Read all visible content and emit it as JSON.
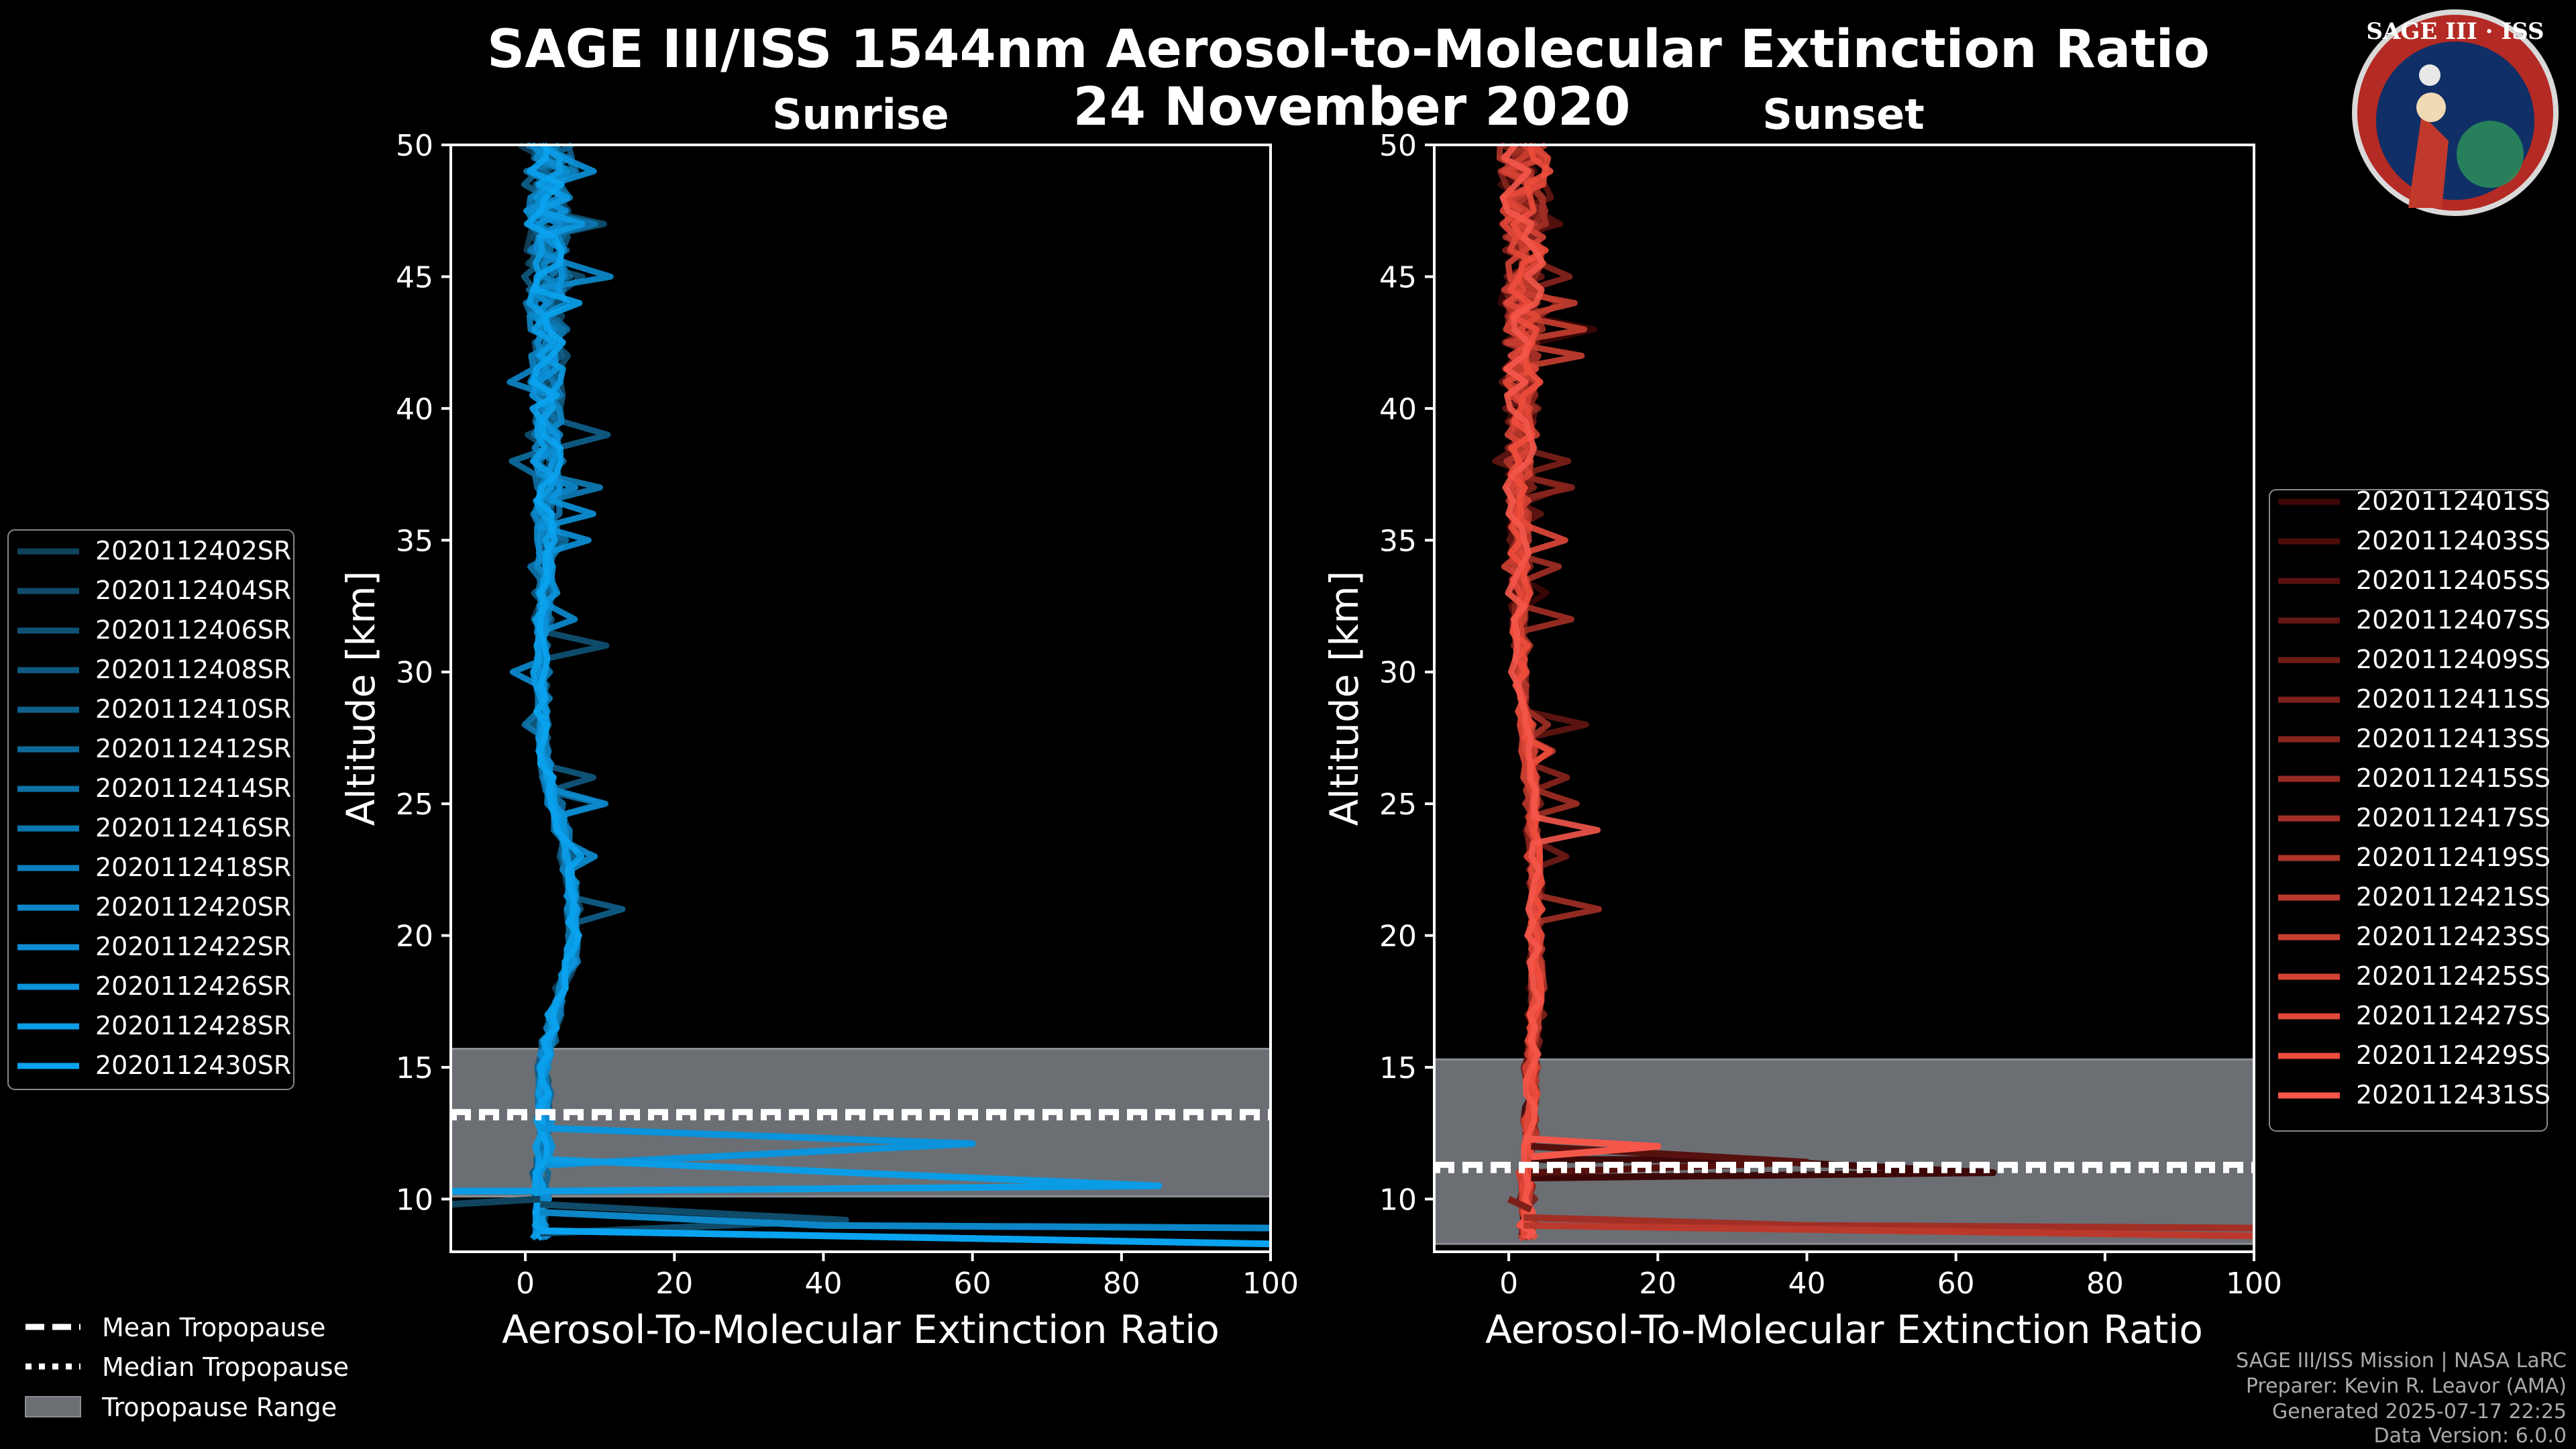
{
  "title_line1": "SAGE III/ISS 1544nm Aerosol-to-Molecular Extinction Ratio",
  "title_line2": "24 November 2020",
  "logo": {
    "text": "SAGE III · ISS",
    "icon": "sage-mission-patch-icon"
  },
  "credits": [
    "SAGE III/ISS Mission | NASA LaRC",
    "Preparer: Kevin R. Leavor (AMA)",
    "Generated 2025-07-17 22:25",
    "Data Version: 6.0.0"
  ],
  "trop_legend": {
    "mean": "Mean Tropopause",
    "median": "Median Tropopause",
    "range": "Tropopause Range"
  },
  "chart_data": [
    {
      "type": "line",
      "title": "Sunrise",
      "xlabel": "Aerosol-To-Molecular Extinction Ratio",
      "ylabel": "Altitude [km]",
      "xlim": [
        -10,
        100
      ],
      "ylim": [
        8,
        50
      ],
      "xticks": [
        0,
        20,
        40,
        60,
        80,
        100
      ],
      "yticks": [
        10,
        15,
        20,
        25,
        30,
        35,
        40,
        45,
        50
      ],
      "grid": false,
      "legend_position": "left",
      "tropopause": {
        "range": [
          10.1,
          15.7
        ],
        "mean": 13.3,
        "median": 13.1
      },
      "profile_altitudes": [
        8.5,
        9,
        10,
        11,
        12,
        13,
        14,
        15,
        16,
        17,
        18,
        19,
        20,
        21,
        22,
        23,
        24,
        25,
        26,
        27,
        28,
        29,
        30,
        31,
        32,
        33,
        34,
        35,
        36,
        37,
        38,
        39,
        40,
        41,
        42,
        43,
        44,
        45,
        46,
        47,
        48,
        49,
        50
      ],
      "profile_base": [
        2,
        2,
        2,
        2,
        2.5,
        2.5,
        2.5,
        2.5,
        3,
        4,
        5,
        6,
        6.5,
        6.5,
        6,
        5.5,
        5,
        4,
        3,
        2.5,
        2.3,
        2.2,
        2.2,
        2.3,
        2.5,
        2.7,
        2.8,
        3,
        3,
        3,
        3,
        3,
        3,
        3,
        3,
        3,
        3,
        3,
        3,
        3,
        3,
        3,
        3
      ],
      "series": [
        {
          "name": "2020112402SR",
          "color": "#10445e"
        },
        {
          "name": "2020112404SR",
          "color": "#104b69"
        },
        {
          "name": "2020112406SR",
          "color": "#105275"
        },
        {
          "name": "2020112408SR",
          "color": "#0f5a81"
        },
        {
          "name": "2020112410SR",
          "color": "#0f618c"
        },
        {
          "name": "2020112412SR",
          "color": "#0e6898"
        },
        {
          "name": "2020112414SR",
          "color": "#0e70a4"
        },
        {
          "name": "2020112416SR",
          "color": "#0d77af"
        },
        {
          "name": "2020112418SR",
          "color": "#0d7ebb"
        },
        {
          "name": "2020112420SR",
          "color": "#0c86c6"
        },
        {
          "name": "2020112422SR",
          "color": "#0c8dd2"
        },
        {
          "name": "2020112426SR",
          "color": "#0b94dc"
        },
        {
          "name": "2020112428SR",
          "color": "#0b9ce6"
        },
        {
          "name": "2020112430SR",
          "color": "#0aa3f0"
        }
      ],
      "excursions": [
        {
          "series": "2020112426SR",
          "points": [
            [
              2,
              12.7
            ],
            [
              60,
              12.1
            ],
            [
              3,
              11.3
            ]
          ]
        },
        {
          "series": "2020112428SR",
          "points": [
            [
              3,
              11.5
            ],
            [
              85,
              10.5
            ],
            [
              2,
              10.3
            ],
            [
              -10,
              10.3
            ]
          ]
        },
        {
          "series": "2020112404SR",
          "points": [
            [
              2,
              9.8
            ],
            [
              43,
              9.2
            ],
            [
              2,
              8.7
            ]
          ]
        },
        {
          "series": "2020112402SR",
          "points": [
            [
              -10,
              9.8
            ],
            [
              2,
              10.0
            ]
          ]
        },
        {
          "series": "2020112420SR",
          "points": [
            [
              2,
              9.5
            ],
            [
              40,
              9.0
            ],
            [
              100,
              8.9
            ]
          ]
        },
        {
          "series": "2020112430SR",
          "points": [
            [
              2,
              8.8
            ],
            [
              100,
              8.3
            ]
          ]
        }
      ]
    },
    {
      "type": "line",
      "title": "Sunset",
      "xlabel": "Aerosol-To-Molecular Extinction Ratio",
      "ylabel": "Altitude [km]",
      "xlim": [
        -10,
        100
      ],
      "ylim": [
        8,
        50
      ],
      "xticks": [
        0,
        20,
        40,
        60,
        80,
        100
      ],
      "yticks": [
        10,
        15,
        20,
        25,
        30,
        35,
        40,
        45,
        50
      ],
      "grid": false,
      "legend_position": "right",
      "tropopause": {
        "range": [
          8.3,
          15.3
        ],
        "mean": 11.3,
        "median": 11.1
      },
      "profile_altitudes": [
        8.5,
        9,
        10,
        11,
        12,
        13,
        14,
        15,
        16,
        17,
        18,
        19,
        20,
        21,
        22,
        23,
        24,
        25,
        26,
        27,
        28,
        29,
        30,
        31,
        32,
        33,
        34,
        35,
        36,
        37,
        38,
        39,
        40,
        41,
        42,
        43,
        44,
        45,
        46,
        47,
        48,
        49,
        50
      ],
      "profile_base": [
        2.5,
        2.5,
        2.5,
        2.5,
        3,
        3,
        3,
        3,
        3.3,
        3.6,
        3.8,
        3.8,
        3.7,
        3.6,
        3.5,
        3.4,
        3.3,
        3.2,
        3,
        2.7,
        2.2,
        1.8,
        1.5,
        1.4,
        1.3,
        1.3,
        1.3,
        1.4,
        1.4,
        1.5,
        1.5,
        1.6,
        1.6,
        1.7,
        1.7,
        1.8,
        1.8,
        2,
        2,
        2,
        2,
        2,
        2
      ],
      "series": [
        {
          "name": "2020112401SS",
          "color": "#3d0707"
        },
        {
          "name": "2020112403SS",
          "color": "#490c0a"
        },
        {
          "name": "2020112405SS",
          "color": "#56110e"
        },
        {
          "name": "2020112407SS",
          "color": "#631612"
        },
        {
          "name": "2020112409SS",
          "color": "#6f1b16"
        },
        {
          "name": "2020112411SS",
          "color": "#7c2019"
        },
        {
          "name": "2020112413SS",
          "color": "#89251d"
        },
        {
          "name": "2020112415SS",
          "color": "#952a21"
        },
        {
          "name": "2020112417SS",
          "color": "#a22f25"
        },
        {
          "name": "2020112419SS",
          "color": "#af3429"
        },
        {
          "name": "2020112421SS",
          "color": "#bb392c"
        },
        {
          "name": "2020112423SS",
          "color": "#c83e30"
        },
        {
          "name": "2020112425SS",
          "color": "#d54334"
        },
        {
          "name": "2020112427SS",
          "color": "#e14838"
        },
        {
          "name": "2020112429SS",
          "color": "#ee4d3c"
        },
        {
          "name": "2020112431SS",
          "color": "#f4574a"
        }
      ],
      "excursions": [
        {
          "series": "2020112401SS",
          "points": [
            [
              3,
              11.5
            ],
            [
              30,
              11.5
            ],
            [
              65,
              11.0
            ],
            [
              3,
              10.8
            ]
          ]
        },
        {
          "series": "2020112405SS",
          "points": [
            [
              3,
              12.0
            ],
            [
              40,
              11.4
            ],
            [
              3,
              11.0
            ]
          ]
        },
        {
          "series": "2020112431SS",
          "points": [
            [
              2,
              12.3
            ],
            [
              20,
              12.0
            ],
            [
              3,
              11.6
            ]
          ]
        },
        {
          "series": "2020112417SS",
          "points": [
            [
              2,
              9.3
            ],
            [
              40,
              9.0
            ],
            [
              100,
              8.9
            ]
          ]
        },
        {
          "series": "2020112421SS",
          "points": [
            [
              2,
              9.0
            ],
            [
              100,
              8.6
            ]
          ]
        },
        {
          "series": "2020112411SS",
          "points": [
            [
              0,
              10.0
            ],
            [
              3,
              9.6
            ]
          ]
        }
      ]
    }
  ]
}
